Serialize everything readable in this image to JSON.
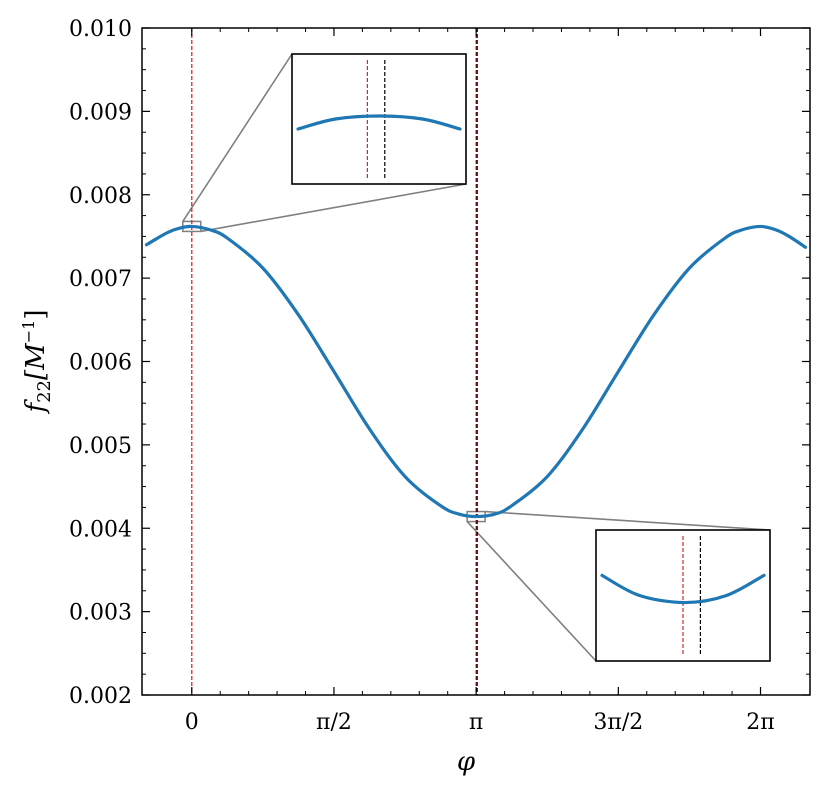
{
  "chart_data": {
    "type": "line",
    "xlabel": "φ",
    "ylabel_main": "f",
    "ylabel_sub": "22",
    "ylabel_unit_open": "[M",
    "ylabel_unit_sup": "−1",
    "ylabel_unit_close": "]",
    "xlim": [
      -0.55,
      6.83
    ],
    "ylim": [
      0.002,
      0.01
    ],
    "x_ticks": [
      {
        "value": 0,
        "label": "0"
      },
      {
        "value": 1.5708,
        "label": "π/2"
      },
      {
        "value": 3.1416,
        "label": "π"
      },
      {
        "value": 4.7124,
        "label": "3π/2"
      },
      {
        "value": 6.2832,
        "label": "2π"
      }
    ],
    "y_ticks": [
      {
        "value": 0.002,
        "label": "0.002"
      },
      {
        "value": 0.003,
        "label": "0.003"
      },
      {
        "value": 0.004,
        "label": "0.004"
      },
      {
        "value": 0.005,
        "label": "0.005"
      },
      {
        "value": 0.006,
        "label": "0.006"
      },
      {
        "value": 0.007,
        "label": "0.007"
      },
      {
        "value": 0.008,
        "label": "0.008"
      },
      {
        "value": 0.009,
        "label": "0.009"
      },
      {
        "value": 0.01,
        "label": "0.010"
      }
    ],
    "series": [
      {
        "color": "#1f77b4",
        "x": [
          -0.5,
          -0.3927,
          -0.2618,
          -0.1309,
          0,
          0.2,
          0.3927,
          0.7854,
          1.1781,
          1.5708,
          1.9635,
          2.3562,
          2.7489,
          2.95,
          3.1416,
          3.35,
          3.5343,
          3.927,
          4.3197,
          4.7124,
          5.1051,
          5.4978,
          5.8905,
          6.0832,
          6.2832,
          6.45,
          6.6,
          6.78
        ],
        "y": [
          0.0074,
          0.00747,
          0.00755,
          0.0076,
          0.00762,
          0.00758,
          0.00748,
          0.00712,
          0.00656,
          0.00588,
          0.00519,
          0.00462,
          0.00427,
          0.00417,
          0.00414,
          0.00417,
          0.00427,
          0.00462,
          0.00519,
          0.00588,
          0.00656,
          0.00712,
          0.00748,
          0.00758,
          0.00762,
          0.00758,
          0.0075,
          0.00737
        ]
      }
    ],
    "vlines": [
      {
        "x": 0,
        "color": "#d62728",
        "style": "dashed"
      },
      {
        "x": 3.1416,
        "color": "#d62728",
        "style": "dashed"
      },
      {
        "x": 3.1416,
        "color": "#000000",
        "style": "dashed"
      }
    ],
    "insets": [
      {
        "xlim": [
          -0.06,
          0.06
        ],
        "ylim": [
          0.00755,
          0.00768
        ],
        "source_center": [
          0,
          0.00762
        ],
        "location": "top-center",
        "lines": [
          {
            "x": -0.008,
            "color": "#d62728"
          },
          {
            "x": 0.004,
            "color": "#000000"
          }
        ],
        "curve_x": [
          -0.06,
          -0.03,
          0,
          0.03,
          0.06
        ],
        "curve_y": [
          0.007605,
          0.007615,
          0.007618,
          0.007615,
          0.007605
        ]
      },
      {
        "xlim": [
          3.08,
          3.2
        ],
        "ylim": [
          0.00408,
          0.00421
        ],
        "source_center": [
          3.1416,
          0.00414
        ],
        "location": "bottom-right",
        "lines": [
          {
            "x": 3.14,
            "color": "#d62728"
          },
          {
            "x": 3.152,
            "color": "#000000"
          }
        ],
        "curve_x": [
          3.08,
          3.11,
          3.1416,
          3.17,
          3.2
        ],
        "curve_y": [
          0.004165,
          0.004145,
          0.004138,
          0.004145,
          0.004165
        ]
      }
    ],
    "grid": false
  }
}
